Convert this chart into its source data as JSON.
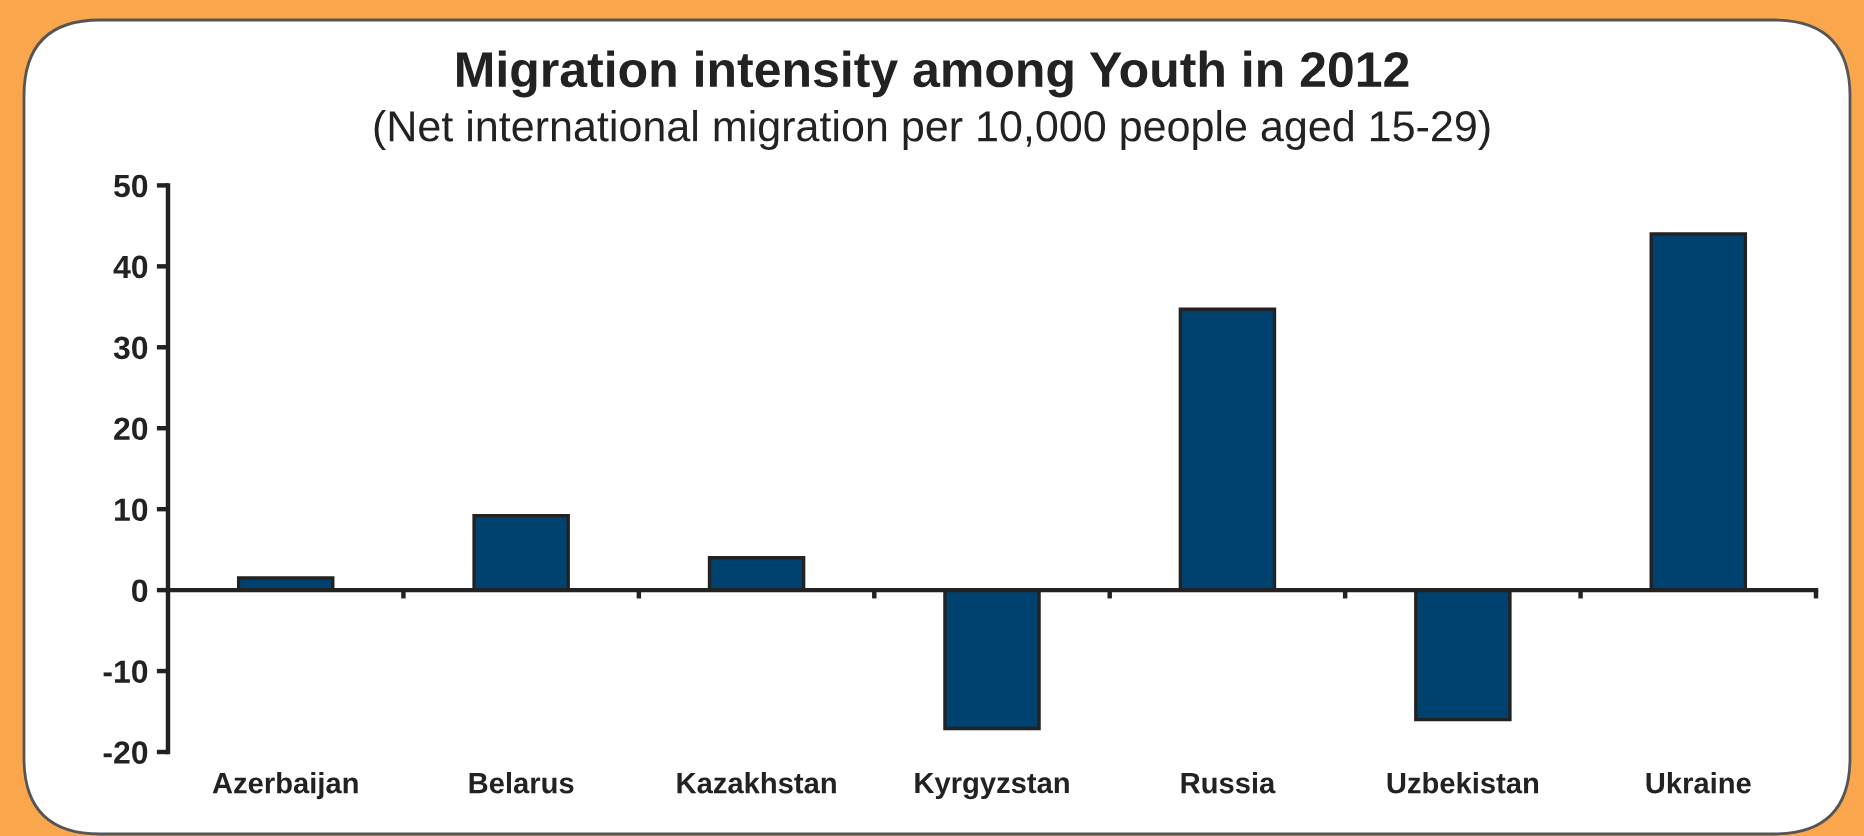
{
  "chart_data": {
    "type": "bar",
    "title": "Migration intensity among Youth in 2012",
    "subtitle": "(Net international migration per 10,000 people aged 15-29)",
    "categories": [
      "Azerbaijan",
      "Belarus",
      "Kazakhstan",
      "Kyrgyzstan",
      "Russia",
      "Uzbekistan",
      "Ukraine"
    ],
    "values": [
      1.5,
      9.2,
      4.0,
      -17.1,
      34.7,
      -16.0,
      44.0
    ],
    "color": "#00426f",
    "ylim": [
      -20,
      50
    ],
    "yticks": [
      -20,
      -10,
      0,
      10,
      20,
      30,
      40,
      50
    ]
  }
}
